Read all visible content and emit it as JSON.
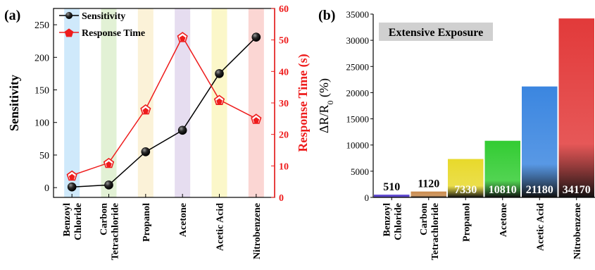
{
  "chart_data": [
    {
      "panel_label": "(a)",
      "type": "line",
      "categories": [
        "Benzoyl Chloride",
        "Carbon Tetrachloride",
        "Propanol",
        "Acetone",
        "Acetic Acid",
        "Nitrobenzene"
      ],
      "category_lines": [
        [
          "Benzoyl",
          "Chloride"
        ],
        [
          "Carbon",
          "Tetrachloride"
        ],
        [
          "Propanol"
        ],
        [
          "Acetone"
        ],
        [
          "Acetic Acid"
        ],
        [
          "Nitrobenzene"
        ]
      ],
      "band_colors": [
        "#cfe9fb",
        "#e2f1d5",
        "#fbf2d8",
        "#e6ddf0",
        "#fbf7c9",
        "#fbd6d3"
      ],
      "ylabel": "Sensitivity",
      "ylim": [
        -15,
        275
      ],
      "yticks": [
        0,
        50,
        100,
        150,
        200,
        250
      ],
      "y2label": "Response Time (s)",
      "y2lim": [
        0,
        60
      ],
      "y2ticks": [
        0,
        10,
        20,
        30,
        40,
        50,
        60
      ],
      "series": [
        {
          "name": "Sensitivity",
          "axis": "left",
          "color": "#000000",
          "marker": "sphere",
          "values": [
            1,
            4,
            55,
            88,
            175,
            231
          ]
        },
        {
          "name": "Response Time",
          "axis": "right",
          "color": "#ee1c1c",
          "marker": "pentagon",
          "values": [
            7,
            11,
            28,
            51,
            31,
            25
          ]
        }
      ],
      "legend_position": "top-left",
      "grid": false
    },
    {
      "panel_label": "(b)",
      "type": "bar",
      "title": "Extensive Exposure",
      "categories": [
        "Benzoyl Chloride",
        "Carbon Tetrachloride",
        "Propanol",
        "Acetone",
        "Acetic Acid",
        "Nitrobenzene"
      ],
      "category_lines": [
        [
          "Benzoyl",
          "Chloride"
        ],
        [
          "Carbon",
          "Tetrachloride"
        ],
        [
          "Propanol"
        ],
        [
          "Acetone"
        ],
        [
          "Acetic Acid"
        ],
        [
          "Nitrobenzene"
        ]
      ],
      "values": [
        510,
        1120,
        7330,
        10810,
        21180,
        34170
      ],
      "value_labels": [
        "510",
        "1120",
        "7330",
        "10810",
        "21180",
        "34170"
      ],
      "bar_colors": [
        "#4b33c9",
        "#c98a4b",
        "#e8d92b",
        "#33cc33",
        "#3b86e0",
        "#e23a3a"
      ],
      "ylabel_main": "ΔR/R",
      "ylabel_sub": "0",
      "ylabel_tail": " (%)",
      "ylim": [
        0,
        35000
      ],
      "yticks": [
        0,
        5000,
        10000,
        15000,
        20000,
        25000,
        30000,
        35000
      ],
      "grid": false
    }
  ]
}
